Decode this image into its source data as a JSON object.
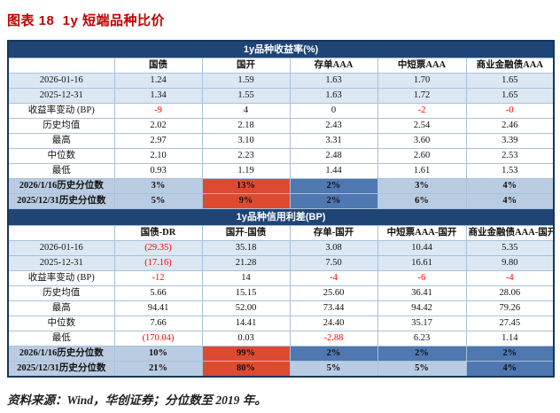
{
  "page": {
    "title": "图表 18  1y 短端品种比价",
    "source_note": "资料来源：Wind，华创证券；分位数至 2019 年。"
  },
  "colors": {
    "title_red": "#C00000",
    "section_header_bg": "#1F4577",
    "section_header_text": "#FFFFFF",
    "outer_border": "#16365C",
    "grid_line": "#A9C1DA",
    "row_tint": "#DBE8F4",
    "pct_row_bg": "#BACCE2",
    "hl_red": "#DD4A32",
    "hl_blue": "#4F77B0",
    "negative_text": "#FF0000",
    "source_text": "#1F1F1F"
  },
  "table": {
    "sections": [
      {
        "title": "1y品种收益率(%)",
        "columns": [
          "",
          "国债",
          "国开",
          "存单AAA",
          "中短票AAA",
          "商业金融债AAA"
        ],
        "rows": [
          {
            "label": "2026-01-16",
            "style": "tint",
            "cells": [
              "1.24",
              "1.59",
              "1.63",
              "1.70",
              "1.65"
            ]
          },
          {
            "label": "2025-12-31",
            "style": "tint",
            "cells": [
              "1.34",
              "1.55",
              "1.63",
              "1.72",
              "1.65"
            ]
          },
          {
            "label": "收益率变动 (BP)",
            "cells": [
              "-9",
              "4",
              "0",
              "-2",
              "-0"
            ],
            "red": [
              true,
              false,
              false,
              true,
              true
            ]
          },
          {
            "label": "历史均值",
            "cells": [
              "2.02",
              "2.18",
              "2.43",
              "2.54",
              "2.46"
            ]
          },
          {
            "label": "最高",
            "cells": [
              "2.97",
              "3.10",
              "3.31",
              "3.60",
              "3.39"
            ]
          },
          {
            "label": "中位数",
            "cells": [
              "2.10",
              "2.23",
              "2.48",
              "2.60",
              "2.53"
            ]
          },
          {
            "label": "最低",
            "cells": [
              "0.93",
              "1.19",
              "1.44",
              "1.61",
              "1.53"
            ]
          },
          {
            "label": "2026/1/16历史分位数",
            "type": "pct",
            "cells": [
              "3%",
              "13%",
              "2%",
              "3%",
              "4%"
            ],
            "hl": [
              "",
              "red",
              "blue",
              "",
              ""
            ]
          },
          {
            "label": "2025/12/31历史分位数",
            "type": "pct",
            "cells": [
              "5%",
              "9%",
              "2%",
              "6%",
              "4%"
            ],
            "hl": [
              "",
              "red",
              "blue",
              "",
              ""
            ]
          }
        ]
      },
      {
        "title": "1y品种信用利差(BP)",
        "columns": [
          "",
          "国债-DR",
          "国开-国债",
          "存单-国开",
          "中短票AAA-国开",
          "商业金融债AAA-国开"
        ],
        "rows": [
          {
            "label": "2026-01-16",
            "style": "tint",
            "cells": [
              "(29.35)",
              "35.18",
              "3.08",
              "10.44",
              "5.35"
            ],
            "red": [
              true,
              false,
              false,
              false,
              false
            ]
          },
          {
            "label": "2025-12-31",
            "style": "tint",
            "cells": [
              "(17.16)",
              "21.28",
              "7.50",
              "16.61",
              "9.80"
            ],
            "red": [
              true,
              false,
              false,
              false,
              false
            ]
          },
          {
            "label": "收益率变动 (BP)",
            "cells": [
              "-12",
              "14",
              "-4",
              "-6",
              "-4"
            ],
            "red": [
              true,
              false,
              true,
              true,
              true
            ]
          },
          {
            "label": "历史均值",
            "cells": [
              "5.66",
              "15.15",
              "25.60",
              "36.41",
              "28.06"
            ]
          },
          {
            "label": "最高",
            "cells": [
              "94.41",
              "52.00",
              "73.44",
              "94.42",
              "79.26"
            ]
          },
          {
            "label": "中位数",
            "cells": [
              "7.66",
              "14.41",
              "24.40",
              "35.17",
              "27.45"
            ]
          },
          {
            "label": "最低",
            "cells": [
              "(170.04)",
              "0.03",
              "-2.88",
              "6.23",
              "1.14"
            ],
            "red": [
              true,
              false,
              true,
              false,
              false
            ]
          },
          {
            "label": "2026/1/16历史分位数",
            "type": "pct",
            "cells": [
              "10%",
              "99%",
              "2%",
              "2%",
              "2%"
            ],
            "hl": [
              "",
              "red",
              "blue",
              "blue",
              "blue"
            ]
          },
          {
            "label": "2025/12/31历史分位数",
            "type": "pct",
            "cells": [
              "21%",
              "80%",
              "5%",
              "5%",
              "4%"
            ],
            "hl": [
              "",
              "red",
              "",
              "",
              "blue"
            ]
          }
        ]
      }
    ]
  }
}
